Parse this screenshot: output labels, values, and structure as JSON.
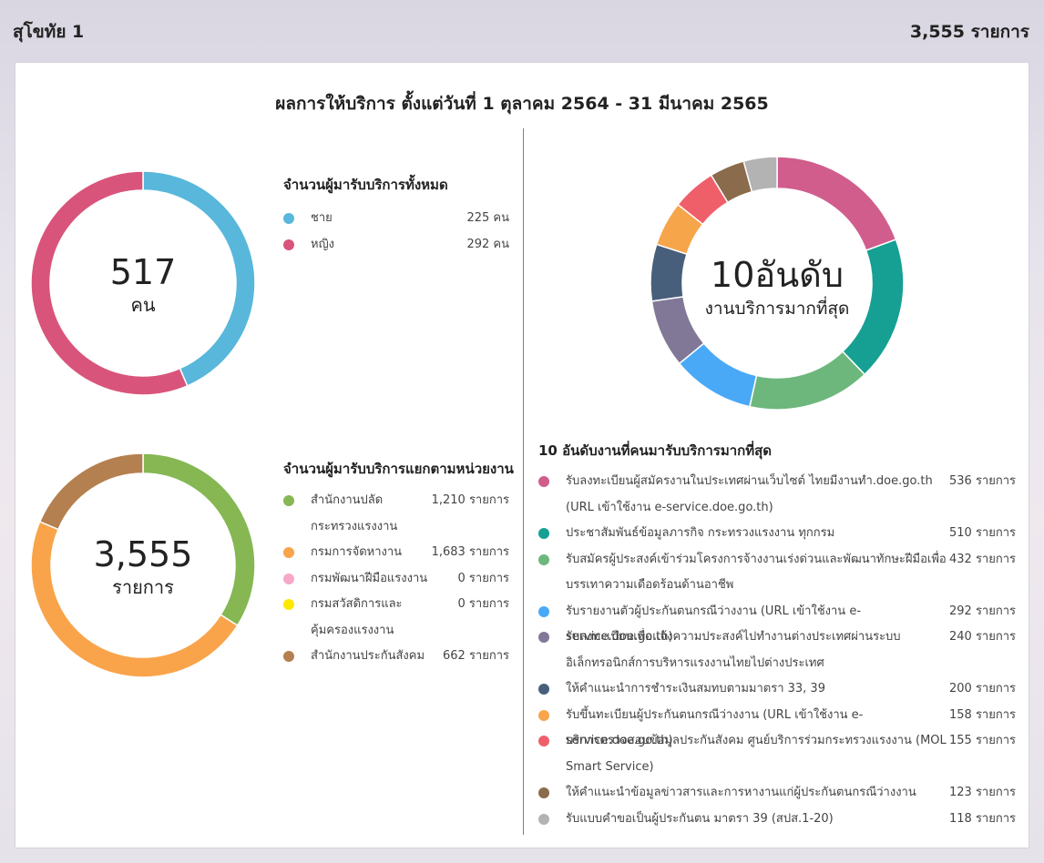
{
  "header": {
    "location": "สุโขทัย 1",
    "total": "3,555 รายการ"
  },
  "title": "ผลการให้บริการ ตั้งแต่วันที่ 1 ตุลาคม 2564 - 31 มีนาคม 2565",
  "donut_gender": {
    "center_value": "517",
    "center_unit": "คน",
    "legend_title": "จำนวนผู้มารับบริการทั้งหมด",
    "items": [
      {
        "label": "ชาย",
        "value_text": "225 คน"
      },
      {
        "label": "หญิง",
        "value_text": "292 คน"
      }
    ]
  },
  "donut_agency": {
    "center_value": "3,555",
    "center_unit": "รายการ",
    "legend_title": "จำนวนผู้มารับบริการแยกตามหน่วยงาน",
    "items": [
      {
        "label": "สำนักงานปลัดกระทรวงแรงงาน",
        "value_text": "1,210 รายการ"
      },
      {
        "label": "กรมการจัดหางาน",
        "value_text": "1,683 รายการ"
      },
      {
        "label": "กรมพัฒนาฝีมือแรงงาน",
        "value_text": "0 รายการ"
      },
      {
        "label": "กรมสวัสดิการและคุ้มครองแรงงาน",
        "value_text": "0 รายการ"
      },
      {
        "label": "สำนักงานประกันสังคม",
        "value_text": "662 รายการ"
      }
    ]
  },
  "donut_top10": {
    "center_value": "10อันดับ",
    "center_unit": "งานบริการมากที่สุด",
    "list_title": "10 อันดับงานที่คนมารับบริการมากที่สุด",
    "items": [
      {
        "label": "รับลงทะเบียนผู้สมัครงานในประเทศผ่านเว็บไซต์ ไทยมีงานทำ.doe.go.th (URL เข้าใช้งาน e-service.doe.go.th)",
        "value_text": "536 รายการ"
      },
      {
        "label": "ประชาสัมพันธ์ข้อมูลภารกิจ กระทรวงแรงงาน ทุกกรม",
        "value_text": "510 รายการ"
      },
      {
        "label": "รับสมัครผู้ประสงค์เข้าร่วมโครงการจ้างงานเร่งด่วนและพัฒนาทักษะฝีมือเพื่อบรรเทาความเดือดร้อนด้านอาชีพ",
        "value_text": "432 รายการ"
      },
      {
        "label": "รับรายงานตัวผู้ประกันตนกรณีว่างงาน (URL เข้าใช้งาน e-service.doe.go.th)",
        "value_text": "292 รายการ"
      },
      {
        "label": "รับลงทะเบียนเพื่อแจ้งความประสงค์ไปทำงานต่างประเทศผ่านระบบอิเล็กทรอนิกส์การบริหารแรงงานไทยไปต่างประเทศ",
        "value_text": "240 รายการ"
      },
      {
        "label": "ให้คำแนะนำการชำระเงินสมทบตามมาตรา 33, 39",
        "value_text": "200 รายการ"
      },
      {
        "label": "รับขึ้นทะเบียนผู้ประกันตนกรณีว่างงาน (URL เข้าใช้งาน e-service.doe.go.th)",
        "value_text": "158 รายการ"
      },
      {
        "label": "บริการตรวจสอบข้อมูลประกันสังคม ศูนย์บริการร่วมกระทรวงแรงงาน (MOL Smart Service)",
        "value_text": "155 รายการ"
      },
      {
        "label": "ให้คำแนะนำข้อมูลข่าวสารและการหางานแก่ผู้ประกันตนกรณีว่างงาน",
        "value_text": "123 รายการ"
      },
      {
        "label": "รับแบบคำขอเป็นผู้ประกันตน มาตรา 39 (สปส.1-20)",
        "value_text": "118 รายการ"
      }
    ]
  },
  "chart_data": [
    {
      "type": "pie",
      "categories": [
        "ชาย",
        "หญิง"
      ],
      "values": [
        225,
        292
      ],
      "colors": [
        "#58b7db",
        "#d9547a"
      ],
      "legend": "right"
    },
    {
      "type": "pie",
      "categories": [
        "สำนักงานปลัดกระทรวงแรงงาน",
        "กรมการจัดหางาน",
        "กรมพัฒนาฝีมือแรงงาน",
        "กรมสวัสดิการและคุ้มครองแรงงาน",
        "สำนักงานประกันสังคม"
      ],
      "values": [
        1210,
        1683,
        0,
        0,
        662
      ],
      "colors": [
        "#86b753",
        "#f9a44a",
        "#f7a8c8",
        "#ffe800",
        "#b5804f"
      ],
      "legend": "right"
    },
    {
      "type": "pie",
      "categories": [
        "รับลงทะเบียนผู้สมัครงานในประเทศผ่านเว็บไซต์ ไทยมีงานทำ.doe.go.th (URL เข้าใช้งาน e-service.doe.go.th)",
        "ประชาสัมพันธ์ข้อมูลภารกิจ กระทรวงแรงงาน ทุกกรม",
        "รับสมัครผู้ประสงค์เข้าร่วมโครงการจ้างงานเร่งด่วนและพัฒนาทักษะฝีมือเพื่อบรรเทาความเดือดร้อนด้านอาชีพ",
        "รับรายงานตัวผู้ประกันตนกรณีว่างงาน (URL เข้าใช้งาน e-service.doe.go.th)",
        "รับลงทะเบียนเพื่อแจ้งความประสงค์ไปทำงานต่างประเทศผ่านระบบอิเล็กทรอนิกส์การบริหารแรงงานไทยไปต่างประเทศ",
        "ให้คำแนะนำการชำระเงินสมทบตามมาตรา 33, 39",
        "รับขึ้นทะเบียนผู้ประกันตนกรณีว่างงาน (URL เข้าใช้งาน e-service.doe.go.th)",
        "บริการตรวจสอบข้อมูลประกันสังคม ศูนย์บริการร่วมกระทรวงแรงงาน (MOL Smart Service)",
        "ให้คำแนะนำข้อมูลข่าวสารและการหางานแก่ผู้ประกันตนกรณีว่างงาน",
        "รับแบบคำขอเป็นผู้ประกันตน มาตรา 39 (สปส.1-20)"
      ],
      "values": [
        536,
        510,
        432,
        292,
        240,
        200,
        158,
        155,
        123,
        118
      ],
      "colors": [
        "#d05d8c",
        "#16a093",
        "#6db77c",
        "#4aa9f7",
        "#817897",
        "#485f7b",
        "#f6a54a",
        "#ef5f6a",
        "#8a6b4b",
        "#b3b3b3"
      ],
      "legend": "bottom"
    }
  ]
}
